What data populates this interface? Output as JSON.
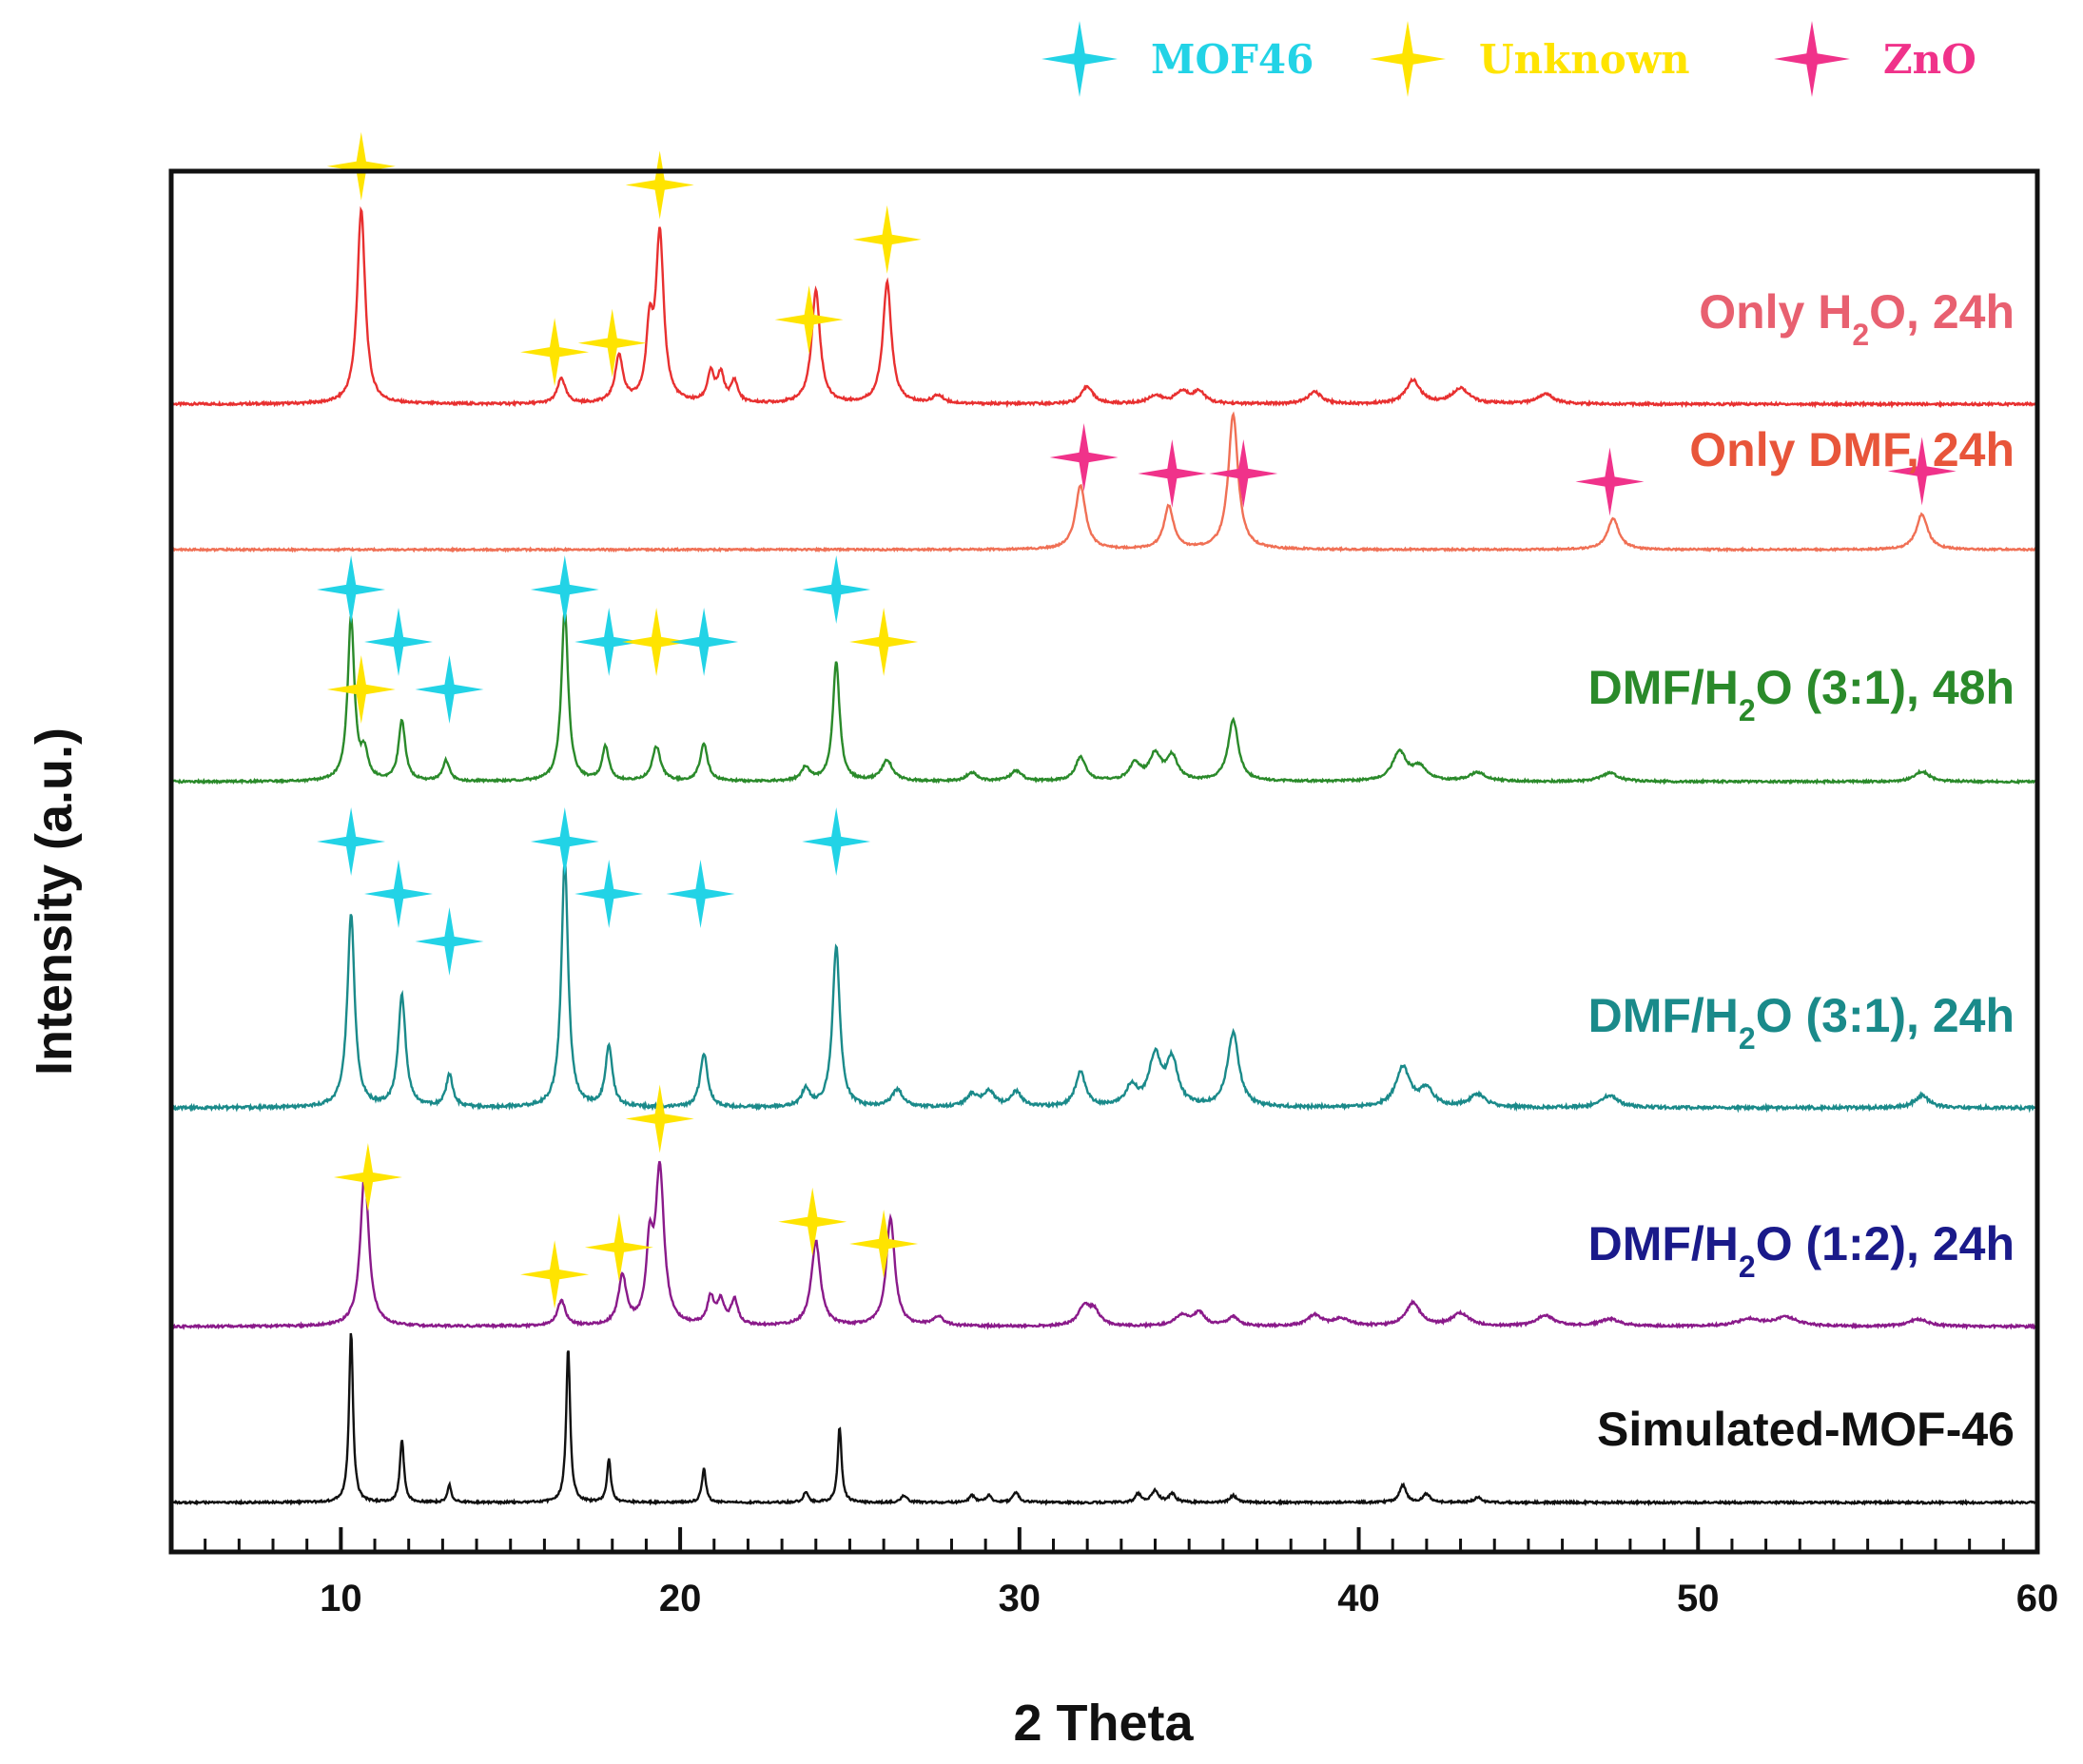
{
  "chart_data": {
    "type": "line",
    "title": "",
    "xlabel": "2 Theta",
    "ylabel": "Intensity (a.u.)",
    "xlim": [
      5,
      60
    ],
    "xticks": [
      10,
      20,
      30,
      40,
      50,
      60
    ],
    "legend_position": "top",
    "legend": [
      {
        "name": "MOF46",
        "color": "#22d3e6"
      },
      {
        "name": "Unknown",
        "color": "#ffe400"
      },
      {
        "name": "ZnO",
        "color": "#f0328a"
      }
    ],
    "series": [
      {
        "name": "Only H2O, 24h",
        "label_main": "Only H",
        "label_sub": "2",
        "label_rest": "O, 24h",
        "color": "#e83030",
        "label_color": "#e86070",
        "peaks": [
          {
            "x": 10.6,
            "h": 1.0,
            "w": 0.14
          },
          {
            "x": 16.5,
            "h": 0.13,
            "w": 0.14
          },
          {
            "x": 18.2,
            "h": 0.24,
            "w": 0.14
          },
          {
            "x": 19.1,
            "h": 0.35,
            "w": 0.12
          },
          {
            "x": 19.4,
            "h": 0.85,
            "w": 0.14
          },
          {
            "x": 20.9,
            "h": 0.15,
            "w": 0.12
          },
          {
            "x": 21.2,
            "h": 0.14,
            "w": 0.12
          },
          {
            "x": 21.6,
            "h": 0.11,
            "w": 0.12
          },
          {
            "x": 24.0,
            "h": 0.58,
            "w": 0.15
          },
          {
            "x": 26.1,
            "h": 0.62,
            "w": 0.15
          },
          {
            "x": 27.6,
            "h": 0.04,
            "w": 0.2
          },
          {
            "x": 32.0,
            "h": 0.09,
            "w": 0.2
          },
          {
            "x": 34.0,
            "h": 0.04,
            "w": 0.25
          },
          {
            "x": 34.8,
            "h": 0.06,
            "w": 0.25
          },
          {
            "x": 35.3,
            "h": 0.06,
            "w": 0.2
          },
          {
            "x": 38.7,
            "h": 0.06,
            "w": 0.25
          },
          {
            "x": 41.6,
            "h": 0.12,
            "w": 0.25
          },
          {
            "x": 43.0,
            "h": 0.08,
            "w": 0.3
          },
          {
            "x": 45.5,
            "h": 0.05,
            "w": 0.3
          }
        ],
        "markers": [
          {
            "x": 10.6,
            "kind": "Unknown"
          },
          {
            "x": 16.3,
            "kind": "Unknown"
          },
          {
            "x": 18.0,
            "kind": "Unknown"
          },
          {
            "x": 19.4,
            "kind": "Unknown"
          },
          {
            "x": 23.8,
            "kind": "Unknown"
          },
          {
            "x": 26.1,
            "kind": "Unknown"
          }
        ]
      },
      {
        "name": "Only DMF, 24h",
        "label_main": "Only DMF, 24h",
        "label_sub": "",
        "label_rest": "",
        "color": "#f07055",
        "label_color": "#e8553a",
        "peaks": [
          {
            "x": 31.8,
            "h": 0.45,
            "w": 0.18
          },
          {
            "x": 34.4,
            "h": 0.3,
            "w": 0.17
          },
          {
            "x": 36.3,
            "h": 0.95,
            "w": 0.17
          },
          {
            "x": 47.5,
            "h": 0.22,
            "w": 0.2
          },
          {
            "x": 56.6,
            "h": 0.25,
            "w": 0.2
          }
        ],
        "markers": [
          {
            "x": 31.9,
            "kind": "ZnO"
          },
          {
            "x": 34.5,
            "kind": "ZnO"
          },
          {
            "x": 36.6,
            "kind": "ZnO"
          },
          {
            "x": 47.4,
            "kind": "ZnO"
          },
          {
            "x": 56.6,
            "kind": "ZnO"
          }
        ]
      },
      {
        "name": "DMF/H2O (3:1), 48h",
        "label_main": "DMF/H",
        "label_sub": "2",
        "label_rest": "O (3:1), 48h",
        "color": "#2a8a2a",
        "label_color": "#2a8a2a",
        "peaks": [
          {
            "x": 10.3,
            "h": 0.95,
            "w": 0.12
          },
          {
            "x": 10.7,
            "h": 0.15,
            "w": 0.12
          },
          {
            "x": 11.8,
            "h": 0.35,
            "w": 0.12
          },
          {
            "x": 13.1,
            "h": 0.12,
            "w": 0.12
          },
          {
            "x": 16.6,
            "h": 1.0,
            "w": 0.12
          },
          {
            "x": 17.8,
            "h": 0.2,
            "w": 0.12
          },
          {
            "x": 19.3,
            "h": 0.2,
            "w": 0.15
          },
          {
            "x": 20.7,
            "h": 0.22,
            "w": 0.13
          },
          {
            "x": 23.7,
            "h": 0.08,
            "w": 0.15
          },
          {
            "x": 24.6,
            "h": 0.7,
            "w": 0.12
          },
          {
            "x": 26.1,
            "h": 0.12,
            "w": 0.2
          },
          {
            "x": 28.6,
            "h": 0.05,
            "w": 0.2
          },
          {
            "x": 29.9,
            "h": 0.06,
            "w": 0.2
          },
          {
            "x": 31.8,
            "h": 0.14,
            "w": 0.18
          },
          {
            "x": 33.4,
            "h": 0.1,
            "w": 0.2
          },
          {
            "x": 34.0,
            "h": 0.15,
            "w": 0.2
          },
          {
            "x": 34.5,
            "h": 0.14,
            "w": 0.2
          },
          {
            "x": 36.3,
            "h": 0.36,
            "w": 0.18
          },
          {
            "x": 41.2,
            "h": 0.17,
            "w": 0.25
          },
          {
            "x": 41.8,
            "h": 0.08,
            "w": 0.25
          },
          {
            "x": 43.5,
            "h": 0.05,
            "w": 0.3
          },
          {
            "x": 47.4,
            "h": 0.05,
            "w": 0.3
          },
          {
            "x": 56.6,
            "h": 0.06,
            "w": 0.25
          }
        ],
        "markers": [
          {
            "x": 10.3,
            "kind": "MOF46",
            "lvl": 0
          },
          {
            "x": 10.6,
            "kind": "Unknown",
            "lvl": 2
          },
          {
            "x": 11.7,
            "kind": "MOF46",
            "lvl": 1
          },
          {
            "x": 13.2,
            "kind": "MOF46",
            "lvl": 2
          },
          {
            "x": 16.6,
            "kind": "MOF46",
            "lvl": 0
          },
          {
            "x": 17.9,
            "kind": "MOF46",
            "lvl": 1
          },
          {
            "x": 19.3,
            "kind": "Unknown",
            "lvl": 1
          },
          {
            "x": 20.7,
            "kind": "MOF46",
            "lvl": 1
          },
          {
            "x": 24.6,
            "kind": "MOF46",
            "lvl": 0
          },
          {
            "x": 26.0,
            "kind": "Unknown",
            "lvl": 1
          }
        ]
      },
      {
        "name": "DMF/H2O (3:1), 24h",
        "label_main": "DMF/H",
        "label_sub": "2",
        "label_rest": "O (3:1), 24h",
        "color": "#1a8a8a",
        "label_color": "#1a8a8a",
        "peaks": [
          {
            "x": 10.3,
            "h": 0.78,
            "w": 0.13
          },
          {
            "x": 11.8,
            "h": 0.45,
            "w": 0.13
          },
          {
            "x": 13.2,
            "h": 0.13,
            "w": 0.12
          },
          {
            "x": 16.6,
            "h": 1.0,
            "w": 0.12
          },
          {
            "x": 17.9,
            "h": 0.25,
            "w": 0.12
          },
          {
            "x": 20.7,
            "h": 0.22,
            "w": 0.13
          },
          {
            "x": 23.7,
            "h": 0.07,
            "w": 0.15
          },
          {
            "x": 24.6,
            "h": 0.65,
            "w": 0.13
          },
          {
            "x": 26.4,
            "h": 0.07,
            "w": 0.2
          },
          {
            "x": 28.6,
            "h": 0.05,
            "w": 0.2
          },
          {
            "x": 29.1,
            "h": 0.06,
            "w": 0.2
          },
          {
            "x": 29.9,
            "h": 0.06,
            "w": 0.2
          },
          {
            "x": 31.8,
            "h": 0.14,
            "w": 0.18
          },
          {
            "x": 33.3,
            "h": 0.08,
            "w": 0.2
          },
          {
            "x": 34.0,
            "h": 0.2,
            "w": 0.22
          },
          {
            "x": 34.5,
            "h": 0.18,
            "w": 0.2
          },
          {
            "x": 36.3,
            "h": 0.3,
            "w": 0.2
          },
          {
            "x": 41.3,
            "h": 0.16,
            "w": 0.25
          },
          {
            "x": 42.0,
            "h": 0.07,
            "w": 0.25
          },
          {
            "x": 43.5,
            "h": 0.05,
            "w": 0.3
          },
          {
            "x": 47.4,
            "h": 0.05,
            "w": 0.3
          },
          {
            "x": 56.6,
            "h": 0.05,
            "w": 0.25
          }
        ],
        "markers": [
          {
            "x": 10.3,
            "kind": "MOF46",
            "lvl": 0
          },
          {
            "x": 11.7,
            "kind": "MOF46",
            "lvl": 1
          },
          {
            "x": 13.2,
            "kind": "MOF46",
            "lvl": 2
          },
          {
            "x": 16.6,
            "kind": "MOF46",
            "lvl": 0
          },
          {
            "x": 17.9,
            "kind": "MOF46",
            "lvl": 1
          },
          {
            "x": 20.6,
            "kind": "MOF46",
            "lvl": 1
          },
          {
            "x": 24.6,
            "kind": "MOF46",
            "lvl": 0
          }
        ]
      },
      {
        "name": "DMF/H2O (1:2), 24h",
        "label_main": "DMF/H",
        "label_sub": "2",
        "label_rest": "O (1:2), 24h",
        "color": "#8a1a8a",
        "label_color": "#1a1a8a",
        "peaks": [
          {
            "x": 10.7,
            "h": 0.85,
            "w": 0.15
          },
          {
            "x": 16.5,
            "h": 0.14,
            "w": 0.14
          },
          {
            "x": 18.3,
            "h": 0.27,
            "w": 0.14
          },
          {
            "x": 19.1,
            "h": 0.4,
            "w": 0.12
          },
          {
            "x": 19.4,
            "h": 0.85,
            "w": 0.15
          },
          {
            "x": 20.9,
            "h": 0.15,
            "w": 0.12
          },
          {
            "x": 21.2,
            "h": 0.13,
            "w": 0.12
          },
          {
            "x": 21.6,
            "h": 0.14,
            "w": 0.12
          },
          {
            "x": 24.0,
            "h": 0.47,
            "w": 0.16
          },
          {
            "x": 26.2,
            "h": 0.6,
            "w": 0.15
          },
          {
            "x": 27.6,
            "h": 0.05,
            "w": 0.2
          },
          {
            "x": 31.9,
            "h": 0.1,
            "w": 0.2
          },
          {
            "x": 32.2,
            "h": 0.08,
            "w": 0.2
          },
          {
            "x": 34.8,
            "h": 0.06,
            "w": 0.25
          },
          {
            "x": 35.3,
            "h": 0.07,
            "w": 0.2
          },
          {
            "x": 36.3,
            "h": 0.05,
            "w": 0.2
          },
          {
            "x": 38.7,
            "h": 0.06,
            "w": 0.25
          },
          {
            "x": 39.5,
            "h": 0.04,
            "w": 0.3
          },
          {
            "x": 41.6,
            "h": 0.13,
            "w": 0.25
          },
          {
            "x": 43.0,
            "h": 0.07,
            "w": 0.3
          },
          {
            "x": 45.5,
            "h": 0.06,
            "w": 0.3
          },
          {
            "x": 47.4,
            "h": 0.04,
            "w": 0.35
          },
          {
            "x": 51.5,
            "h": 0.04,
            "w": 0.4
          },
          {
            "x": 52.6,
            "h": 0.05,
            "w": 0.4
          },
          {
            "x": 56.5,
            "h": 0.04,
            "w": 0.35
          }
        ],
        "markers": [
          {
            "x": 10.8,
            "kind": "Unknown"
          },
          {
            "x": 16.3,
            "kind": "Unknown"
          },
          {
            "x": 18.2,
            "kind": "Unknown"
          },
          {
            "x": 19.4,
            "kind": "Unknown"
          },
          {
            "x": 23.9,
            "kind": "Unknown"
          },
          {
            "x": 26.0,
            "kind": "Unknown"
          }
        ]
      },
      {
        "name": "Simulated-MOF-46",
        "label_main": "Simulated-MOF-46",
        "label_sub": "",
        "label_rest": "",
        "color": "#111111",
        "label_color": "#111111",
        "peaks": [
          {
            "x": 10.3,
            "h": 1.0,
            "w": 0.07
          },
          {
            "x": 11.8,
            "h": 0.37,
            "w": 0.07
          },
          {
            "x": 13.2,
            "h": 0.1,
            "w": 0.07
          },
          {
            "x": 16.7,
            "h": 0.9,
            "w": 0.07
          },
          {
            "x": 17.9,
            "h": 0.25,
            "w": 0.07
          },
          {
            "x": 20.7,
            "h": 0.2,
            "w": 0.07
          },
          {
            "x": 23.7,
            "h": 0.06,
            "w": 0.08
          },
          {
            "x": 24.7,
            "h": 0.44,
            "w": 0.07
          },
          {
            "x": 26.6,
            "h": 0.04,
            "w": 0.1
          },
          {
            "x": 28.6,
            "h": 0.04,
            "w": 0.1
          },
          {
            "x": 29.1,
            "h": 0.04,
            "w": 0.1
          },
          {
            "x": 29.9,
            "h": 0.06,
            "w": 0.1
          },
          {
            "x": 33.5,
            "h": 0.05,
            "w": 0.1
          },
          {
            "x": 34.0,
            "h": 0.07,
            "w": 0.12
          },
          {
            "x": 34.5,
            "h": 0.05,
            "w": 0.12
          },
          {
            "x": 36.3,
            "h": 0.04,
            "w": 0.12
          },
          {
            "x": 41.3,
            "h": 0.1,
            "w": 0.12
          },
          {
            "x": 42.0,
            "h": 0.05,
            "w": 0.12
          },
          {
            "x": 43.5,
            "h": 0.03,
            "w": 0.12
          }
        ],
        "markers": []
      }
    ]
  }
}
